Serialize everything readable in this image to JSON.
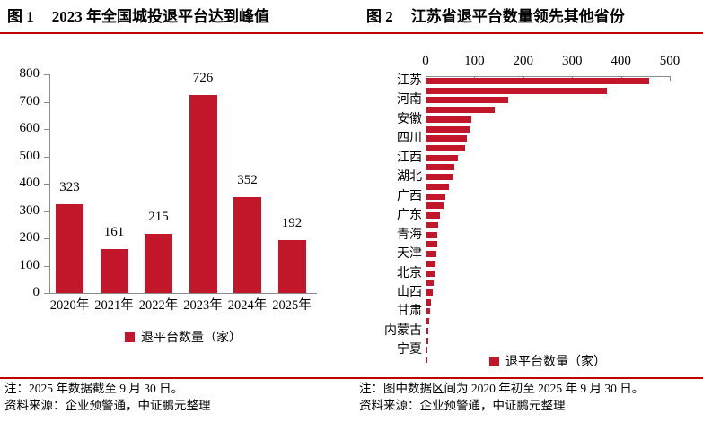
{
  "colors": {
    "bar": "#C2172B",
    "rule": "#C00000",
    "axis": "#8C8C8C",
    "text": "#000000"
  },
  "figure1": {
    "label": "图 1",
    "title": "2023 年全国城投退平台达到峰值",
    "legend": "退平台数量（家）",
    "note": "注：2025 年数据截至 9 月 30 日。",
    "source": "资料来源：企业预警通，中证鹏元整理"
  },
  "figure2": {
    "label": "图 2",
    "title": "江苏省退平台数量领先其他省份",
    "legend": "退平台数量（家）",
    "note": "注：图中数据区间为 2020 年初至 2025 年 9 月 30 日。",
    "source": "资料来源：企业预警通，中证鹏元整理"
  },
  "chart_data": [
    {
      "type": "bar",
      "orientation": "vertical",
      "title": "2023 年全国城投退平台达到峰值",
      "categories": [
        "2020年",
        "2021年",
        "2022年",
        "2023年",
        "2024年",
        "2025年"
      ],
      "values": [
        323,
        161,
        215,
        726,
        352,
        192
      ],
      "xlabel": "",
      "ylabel": "",
      "ylim": [
        0,
        800
      ],
      "ytick_step": 100,
      "grid": false,
      "data_labels": true,
      "legend_entries": [
        "退平台数量（家）"
      ],
      "legend_position": "bottom"
    },
    {
      "type": "bar",
      "orientation": "horizontal",
      "title": "江苏省退平台数量领先其他省份",
      "categories": [
        "江苏",
        "",
        "河南",
        "",
        "安徽",
        "",
        "四川",
        "",
        "江西",
        "",
        "湖北",
        "",
        "广西",
        "",
        "广东",
        "",
        "青海",
        "",
        "天津",
        "",
        "北京",
        "",
        "山西",
        "",
        "甘肃",
        "",
        "内蒙古",
        "",
        "宁夏",
        ""
      ],
      "values": [
        455,
        370,
        168,
        140,
        92,
        88,
        83,
        79,
        64,
        57,
        53,
        46,
        38,
        35,
        28,
        23,
        22,
        22,
        21,
        18,
        16,
        15,
        12,
        10,
        8,
        5,
        4,
        3,
        2,
        2
      ],
      "xlabel": "",
      "ylabel": "",
      "xlim": [
        0,
        500
      ],
      "xtick_step": 100,
      "axis_position": "top",
      "axis_label_interval": 2,
      "grid": false,
      "data_labels": false,
      "legend_entries": [
        "退平台数量（家）"
      ],
      "legend_position": "bottom"
    }
  ]
}
